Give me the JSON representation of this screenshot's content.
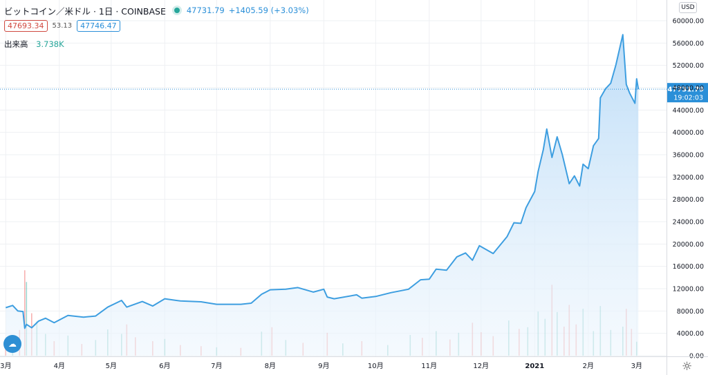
{
  "header": {
    "title": "ビットコイン／米ドル · 1日 · COINBASE",
    "last_price": "47731.79",
    "change": "+1405.59 (+3.03%)"
  },
  "bid_ask": {
    "bid": "47693.34",
    "spread": "53.13",
    "ask": "47746.47"
  },
  "volume": {
    "label": "出来高",
    "value": "3.738K"
  },
  "currency_label": "USD",
  "price_tag": {
    "price": "47731.79",
    "countdown": "19:02:03"
  },
  "icons": {
    "settings": "gear-icon",
    "logo": "tradingview-logo-icon",
    "status": "market-open-dot-icon"
  },
  "colors": {
    "line": "#3d9ee0",
    "up": "#26a69a",
    "down": "#ef5350",
    "tag": "#2a8fd8"
  },
  "chart_data": {
    "type": "area",
    "title": "ビットコイン／米ドル · 1日 · COINBASE",
    "xlabel": "",
    "ylabel": "",
    "x_ticks": [
      "3月",
      "4月",
      "5月",
      "6月",
      "7月",
      "8月",
      "9月",
      "10月",
      "11月",
      "12月",
      "2021",
      "2月",
      "3月"
    ],
    "y_ticks": [
      "0.00",
      "4000.00",
      "8000.00",
      "12000.00",
      "16000.00",
      "20000.00",
      "24000.00",
      "28000.00",
      "32000.00",
      "36000.00",
      "40000.00",
      "44000.00",
      "48000.00",
      "52000.00",
      "56000.00",
      "60000.00"
    ],
    "ylim": [
      0,
      60000
    ],
    "grid": true,
    "current_price": 47731.79,
    "price_series": [
      [
        "2020-03-01",
        8600
      ],
      [
        "2020-03-05",
        9000
      ],
      [
        "2020-03-08",
        8000
      ],
      [
        "2020-03-11",
        7900
      ],
      [
        "2020-03-12",
        4900
      ],
      [
        "2020-03-13",
        5600
      ],
      [
        "2020-03-16",
        5000
      ],
      [
        "2020-03-20",
        6200
      ],
      [
        "2020-03-24",
        6700
      ],
      [
        "2020-03-29",
        5900
      ],
      [
        "2020-04-06",
        7200
      ],
      [
        "2020-04-15",
        6900
      ],
      [
        "2020-04-22",
        7100
      ],
      [
        "2020-04-29",
        8700
      ],
      [
        "2020-05-07",
        9900
      ],
      [
        "2020-05-10",
        8700
      ],
      [
        "2020-05-19",
        9700
      ],
      [
        "2020-05-25",
        8900
      ],
      [
        "2020-06-01",
        10200
      ],
      [
        "2020-06-10",
        9800
      ],
      [
        "2020-06-22",
        9650
      ],
      [
        "2020-07-01",
        9200
      ],
      [
        "2020-07-15",
        9200
      ],
      [
        "2020-07-21",
        9400
      ],
      [
        "2020-07-27",
        11000
      ],
      [
        "2020-08-01",
        11800
      ],
      [
        "2020-08-10",
        11900
      ],
      [
        "2020-08-17",
        12200
      ],
      [
        "2020-08-26",
        11400
      ],
      [
        "2020-09-01",
        11900
      ],
      [
        "2020-09-03",
        10500
      ],
      [
        "2020-09-07",
        10200
      ],
      [
        "2020-09-20",
        10900
      ],
      [
        "2020-09-23",
        10300
      ],
      [
        "2020-10-01",
        10600
      ],
      [
        "2020-10-10",
        11300
      ],
      [
        "2020-10-20",
        11900
      ],
      [
        "2020-10-27",
        13600
      ],
      [
        "2020-11-01",
        13700
      ],
      [
        "2020-11-05",
        15500
      ],
      [
        "2020-11-11",
        15300
      ],
      [
        "2020-11-17",
        17700
      ],
      [
        "2020-11-22",
        18400
      ],
      [
        "2020-11-26",
        17100
      ],
      [
        "2020-11-30",
        19700
      ],
      [
        "2020-12-08",
        18300
      ],
      [
        "2020-12-16",
        21300
      ],
      [
        "2020-12-20",
        23800
      ],
      [
        "2020-12-24",
        23700
      ],
      [
        "2020-12-27",
        26500
      ],
      [
        "2021-01-01",
        29400
      ],
      [
        "2021-01-03",
        33000
      ],
      [
        "2021-01-06",
        36900
      ],
      [
        "2021-01-08",
        40600
      ],
      [
        "2021-01-11",
        35500
      ],
      [
        "2021-01-14",
        39200
      ],
      [
        "2021-01-17",
        36000
      ],
      [
        "2021-01-21",
        30800
      ],
      [
        "2021-01-24",
        32200
      ],
      [
        "2021-01-27",
        30400
      ],
      [
        "2021-01-29",
        34300
      ],
      [
        "2021-02-01",
        33500
      ],
      [
        "2021-02-04",
        37600
      ],
      [
        "2021-02-07",
        38900
      ],
      [
        "2021-02-08",
        46200
      ],
      [
        "2021-02-11",
        47800
      ],
      [
        "2021-02-14",
        48800
      ],
      [
        "2021-02-17",
        52100
      ],
      [
        "2021-02-21",
        57500
      ],
      [
        "2021-02-23",
        48600
      ],
      [
        "2021-02-25",
        47000
      ],
      [
        "2021-02-28",
        45200
      ],
      [
        "2021-03-01",
        49600
      ],
      [
        "2021-03-02",
        47731
      ]
    ],
    "volume_series": [
      [
        "2020-03-01",
        2200,
        "down"
      ],
      [
        "2020-03-05",
        2500,
        "up"
      ],
      [
        "2020-03-09",
        4600,
        "down"
      ],
      [
        "2020-03-12",
        15300,
        "down"
      ],
      [
        "2020-03-13",
        13200,
        "up"
      ],
      [
        "2020-03-16",
        7600,
        "down"
      ],
      [
        "2020-03-19",
        6100,
        "up"
      ],
      [
        "2020-03-24",
        3900,
        "up"
      ],
      [
        "2020-03-29",
        2600,
        "down"
      ],
      [
        "2020-04-06",
        3600,
        "up"
      ],
      [
        "2020-04-14",
        2100,
        "down"
      ],
      [
        "2020-04-22",
        2800,
        "up"
      ],
      [
        "2020-04-29",
        4700,
        "up"
      ],
      [
        "2020-05-07",
        3900,
        "up"
      ],
      [
        "2020-05-10",
        5600,
        "down"
      ],
      [
        "2020-05-15",
        3300,
        "down"
      ],
      [
        "2020-05-25",
        2600,
        "down"
      ],
      [
        "2020-06-01",
        3000,
        "up"
      ],
      [
        "2020-06-10",
        1900,
        "down"
      ],
      [
        "2020-06-22",
        1700,
        "down"
      ],
      [
        "2020-07-01",
        1500,
        "up"
      ],
      [
        "2020-07-15",
        1400,
        "down"
      ],
      [
        "2020-07-27",
        4300,
        "up"
      ],
      [
        "2020-08-02",
        5100,
        "down"
      ],
      [
        "2020-08-10",
        2800,
        "up"
      ],
      [
        "2020-08-20",
        2300,
        "down"
      ],
      [
        "2020-09-03",
        4100,
        "down"
      ],
      [
        "2020-09-12",
        2200,
        "up"
      ],
      [
        "2020-09-23",
        2600,
        "down"
      ],
      [
        "2020-10-08",
        1900,
        "up"
      ],
      [
        "2020-10-21",
        3700,
        "up"
      ],
      [
        "2020-10-28",
        3200,
        "down"
      ],
      [
        "2020-11-05",
        4400,
        "up"
      ],
      [
        "2020-11-13",
        2900,
        "down"
      ],
      [
        "2020-11-18",
        4100,
        "up"
      ],
      [
        "2020-11-26",
        5900,
        "down"
      ],
      [
        "2020-12-01",
        4200,
        "down"
      ],
      [
        "2020-12-08",
        3500,
        "down"
      ],
      [
        "2020-12-17",
        6300,
        "up"
      ],
      [
        "2020-12-23",
        4800,
        "down"
      ],
      [
        "2020-12-28",
        5100,
        "up"
      ],
      [
        "2021-01-03",
        7900,
        "up"
      ],
      [
        "2021-01-07",
        6600,
        "up"
      ],
      [
        "2021-01-11",
        12700,
        "down"
      ],
      [
        "2021-01-14",
        7800,
        "up"
      ],
      [
        "2021-01-18",
        5200,
        "down"
      ],
      [
        "2021-01-21",
        9100,
        "down"
      ],
      [
        "2021-01-25",
        5600,
        "down"
      ],
      [
        "2021-01-29",
        8400,
        "up"
      ],
      [
        "2021-02-04",
        4400,
        "up"
      ],
      [
        "2021-02-08",
        8900,
        "up"
      ],
      [
        "2021-02-14",
        4600,
        "up"
      ],
      [
        "2021-02-21",
        5200,
        "up"
      ],
      [
        "2021-02-23",
        8400,
        "down"
      ],
      [
        "2021-02-26",
        4800,
        "down"
      ],
      [
        "2021-03-01",
        2500,
        "up"
      ]
    ]
  }
}
